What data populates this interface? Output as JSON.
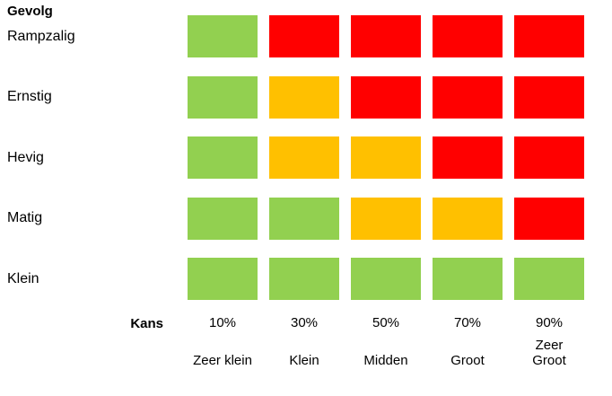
{
  "chart_data": {
    "type": "heatmap",
    "title": "",
    "ylabel": "Gevolg",
    "xlabel": "Kans",
    "rows": [
      "Rampzalig",
      "Ernstig",
      "Hevig",
      "Matig",
      "Klein"
    ],
    "columns": [
      {
        "percent": "10%",
        "label": "Zeer klein"
      },
      {
        "percent": "30%",
        "label": "Klein"
      },
      {
        "percent": "50%",
        "label": "Midden"
      },
      {
        "percent": "70%",
        "label": "Groot"
      },
      {
        "percent": "90%",
        "label": "Zeer\nGroot"
      }
    ],
    "cells": [
      [
        "green",
        "red",
        "red",
        "red",
        "red"
      ],
      [
        "green",
        "orange",
        "red",
        "red",
        "red"
      ],
      [
        "green",
        "orange",
        "orange",
        "red",
        "red"
      ],
      [
        "green",
        "green",
        "orange",
        "orange",
        "red"
      ],
      [
        "green",
        "green",
        "green",
        "green",
        "green"
      ]
    ],
    "colors": {
      "green": "#92D050",
      "orange": "#FFC000",
      "red": "#FF0000"
    },
    "legend": "none",
    "grid": false
  }
}
